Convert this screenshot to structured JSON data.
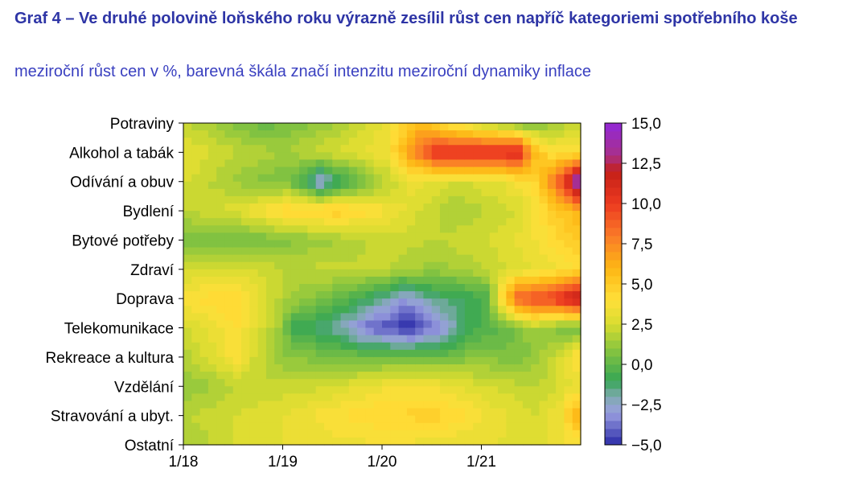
{
  "title": "Graf 4 – Ve druhé polovině loňského roku výrazně zesílil růst cen napříč kategoriemi spotřebního koše",
  "subtitle": "meziroční růst cen v %, barevná škála značí intenzitu meziroční dynamiky inflace",
  "chart_data": {
    "type": "heatmap",
    "title": "Graf 4 – Ve druhé polovině loňského roku výrazně zesílil růst cen napříč kategoriemi spotřebního koše",
    "subtitle": "meziroční růst cen v %, barevná škála značí intenzitu meziroční dynamiky inflace",
    "xlabel": "",
    "ylabel": "",
    "categories_y": [
      "Potraviny",
      "Alkohol a tabák",
      "Odívání a obuv",
      "Bydlení",
      "Bytové potřeby",
      "Zdraví",
      "Doprava",
      "Telekomunikace",
      "Rekreace a kultura",
      "Vzdělání",
      "Stravování a ubyt.",
      "Ostatní"
    ],
    "x_tick_labels": [
      "1/18",
      "1/19",
      "1/20",
      "1/21"
    ],
    "x_tick_months": [
      0,
      12,
      24,
      36
    ],
    "n_months": 48,
    "colorbar": {
      "min": -5.0,
      "max": 15.0,
      "tick_labels": [
        "15,0",
        "12,5",
        "10,0",
        "7,5",
        "5,0",
        "2,5",
        "0,0",
        "−2,5",
        "−5,0"
      ],
      "tick_values": [
        15,
        12.5,
        10,
        7.5,
        5,
        2.5,
        0,
        -2.5,
        -5
      ],
      "levels": 40
    },
    "color_stops": [
      {
        "v": -5.0,
        "c": "#2a2aa8"
      },
      {
        "v": -3.0,
        "c": "#9a9ee0"
      },
      {
        "v": -2.0,
        "c": "#7faab0"
      },
      {
        "v": -1.0,
        "c": "#35a655"
      },
      {
        "v": 1.0,
        "c": "#8cc63e"
      },
      {
        "v": 2.5,
        "c": "#d8dc30"
      },
      {
        "v": 4.0,
        "c": "#ffe03a"
      },
      {
        "v": 6.0,
        "c": "#fdb614"
      },
      {
        "v": 8.0,
        "c": "#fa7a28"
      },
      {
        "v": 10.0,
        "c": "#ec3a20"
      },
      {
        "v": 12.0,
        "c": "#c42018"
      },
      {
        "v": 13.0,
        "c": "#a8308a"
      },
      {
        "v": 15.0,
        "c": "#9228d8"
      }
    ],
    "rows": [
      {
        "name": "Potraviny",
        "anchors": [
          [
            0,
            2.0
          ],
          [
            6,
            0.8
          ],
          [
            9,
            0.2
          ],
          [
            12,
            0.5
          ],
          [
            18,
            1.5
          ],
          [
            24,
            3.2
          ],
          [
            28,
            5.5
          ],
          [
            32,
            3.5
          ],
          [
            36,
            1.8
          ],
          [
            41,
            0.2
          ],
          [
            44,
            1.2
          ],
          [
            47,
            2.0
          ]
        ]
      },
      {
        "name": "Alkohol a tabák",
        "anchors": [
          [
            0,
            3.0
          ],
          [
            6,
            2.0
          ],
          [
            12,
            1.5
          ],
          [
            17,
            2.5
          ],
          [
            21,
            3.0
          ],
          [
            24,
            3.5
          ],
          [
            27,
            7.0
          ],
          [
            30,
            10.5
          ],
          [
            34,
            10.8
          ],
          [
            40,
            11.0
          ],
          [
            42,
            6.0
          ],
          [
            44,
            4.0
          ],
          [
            47,
            4.0
          ]
        ]
      },
      {
        "name": "Odívání a obuv",
        "anchors": [
          [
            0,
            2.5
          ],
          [
            8,
            1.0
          ],
          [
            12,
            0.5
          ],
          [
            14,
            -0.8
          ],
          [
            16,
            -3.0
          ],
          [
            18,
            -1.5
          ],
          [
            24,
            1.8
          ],
          [
            27,
            3.2
          ],
          [
            33,
            2.5
          ],
          [
            38,
            3.0
          ],
          [
            42,
            4.5
          ],
          [
            44,
            7.5
          ],
          [
            46,
            11.5
          ],
          [
            47,
            14.5
          ]
        ]
      },
      {
        "name": "Bydlení",
        "anchors": [
          [
            0,
            2.0
          ],
          [
            6,
            2.8
          ],
          [
            12,
            4.5
          ],
          [
            18,
            5.0
          ],
          [
            24,
            3.6
          ],
          [
            32,
            1.5
          ],
          [
            36,
            2.0
          ],
          [
            40,
            2.5
          ],
          [
            44,
            4.8
          ],
          [
            47,
            6.0
          ]
        ]
      },
      {
        "name": "Bytové potřeby",
        "anchors": [
          [
            0,
            0.5
          ],
          [
            6,
            0.3
          ],
          [
            12,
            0.8
          ],
          [
            18,
            1.5
          ],
          [
            24,
            2.3
          ],
          [
            30,
            2.0
          ],
          [
            36,
            2.5
          ],
          [
            42,
            3.5
          ],
          [
            47,
            5.0
          ]
        ]
      },
      {
        "name": "Zdraví",
        "anchors": [
          [
            0,
            2.3
          ],
          [
            6,
            2.6
          ],
          [
            12,
            2.0
          ],
          [
            18,
            2.2
          ],
          [
            24,
            2.0
          ],
          [
            30,
            1.2
          ],
          [
            36,
            2.0
          ],
          [
            42,
            3.0
          ],
          [
            47,
            4.0
          ]
        ]
      },
      {
        "name": "Doprava",
        "anchors": [
          [
            0,
            4.0
          ],
          [
            6,
            4.5
          ],
          [
            12,
            1.5
          ],
          [
            18,
            0.2
          ],
          [
            22,
            -1.0
          ],
          [
            26,
            -3.0
          ],
          [
            30,
            -1.5
          ],
          [
            36,
            -0.5
          ],
          [
            40,
            9.0
          ],
          [
            44,
            10.0
          ],
          [
            47,
            12.5
          ]
        ]
      },
      {
        "name": "Telekomunikace",
        "anchors": [
          [
            0,
            2.5
          ],
          [
            6,
            4.0
          ],
          [
            11,
            1.5
          ],
          [
            13,
            -0.8
          ],
          [
            18,
            -1.8
          ],
          [
            22,
            -4.0
          ],
          [
            27,
            -5.0
          ],
          [
            31,
            -3.0
          ],
          [
            34,
            -0.8
          ],
          [
            38,
            0.0
          ],
          [
            42,
            1.5
          ],
          [
            47,
            0.0
          ]
        ]
      },
      {
        "name": "Rekreace a kultura",
        "anchors": [
          [
            0,
            1.8
          ],
          [
            6,
            3.8
          ],
          [
            8,
            2.5
          ],
          [
            12,
            1.0
          ],
          [
            18,
            0.5
          ],
          [
            24,
            0.3
          ],
          [
            30,
            0.3
          ],
          [
            36,
            1.0
          ],
          [
            40,
            0.5
          ],
          [
            44,
            2.0
          ],
          [
            47,
            4.0
          ]
        ]
      },
      {
        "name": "Vzdělání",
        "anchors": [
          [
            0,
            1.0
          ],
          [
            6,
            2.0
          ],
          [
            12,
            2.2
          ],
          [
            18,
            2.5
          ],
          [
            24,
            3.5
          ],
          [
            30,
            3.5
          ],
          [
            36,
            2.5
          ],
          [
            42,
            2.0
          ],
          [
            47,
            3.0
          ]
        ]
      },
      {
        "name": "Stravování a ubyt.",
        "anchors": [
          [
            0,
            2.0
          ],
          [
            6,
            2.5
          ],
          [
            12,
            3.0
          ],
          [
            18,
            4.0
          ],
          [
            24,
            4.5
          ],
          [
            30,
            4.8
          ],
          [
            36,
            3.5
          ],
          [
            42,
            2.5
          ],
          [
            45,
            3.5
          ],
          [
            47,
            6.0
          ]
        ]
      },
      {
        "name": "Ostatní",
        "anchors": [
          [
            0,
            1.5
          ],
          [
            6,
            2.5
          ],
          [
            12,
            3.0
          ],
          [
            18,
            3.2
          ],
          [
            24,
            3.5
          ],
          [
            30,
            3.2
          ],
          [
            36,
            3.0
          ],
          [
            42,
            2.8
          ],
          [
            47,
            3.5
          ]
        ]
      }
    ]
  }
}
